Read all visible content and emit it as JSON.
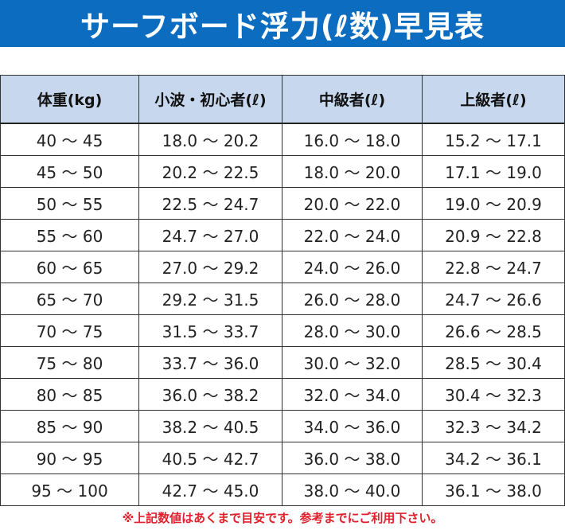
{
  "title": "サーフボード浮力(ℓ数)早見表",
  "colors": {
    "title_bar": "#0b6cc0",
    "header_bg": "#c7d8ee",
    "footnote": "#e0202c"
  },
  "table": {
    "headers": [
      "体重(kg)",
      "小波・初心者(ℓ)",
      "中級者(ℓ)",
      "上級者(ℓ)"
    ],
    "rows": [
      [
        "40 ～ 45",
        "18.0 ～ 20.2",
        "16.0 ～ 18.0",
        "15.2 ～ 17.1"
      ],
      [
        "45 ～ 50",
        "20.2 ～ 22.5",
        "18.0 ～ 20.0",
        "17.1 ～ 19.0"
      ],
      [
        "50 ～ 55",
        "22.5 ～ 24.7",
        "20.0 ～ 22.0",
        "19.0 ～ 20.9"
      ],
      [
        "55 ～ 60",
        "24.7 ～ 27.0",
        "22.0 ～ 24.0",
        "20.9 ～ 22.8"
      ],
      [
        "60 ～ 65",
        "27.0 ～ 29.2",
        "24.0 ～ 26.0",
        "22.8 ～ 24.7"
      ],
      [
        "65 ～ 70",
        "29.2 ～ 31.5",
        "26.0 ～ 28.0",
        "24.7 ～ 26.6"
      ],
      [
        "70 ～ 75",
        "31.5 ～ 33.7",
        "28.0 ～ 30.0",
        "26.6 ～ 28.5"
      ],
      [
        "75 ～ 80",
        "33.7 ～ 36.0",
        "30.0 ～ 32.0",
        "28.5 ～ 30.4"
      ],
      [
        "80 ～ 85",
        "36.0 ～ 38.2",
        "32.0 ～ 34.0",
        "30.4 ～ 32.3"
      ],
      [
        "85 ～ 90",
        "38.2 ～ 40.5",
        "34.0 ～ 36.0",
        "32.3 ～ 34.2"
      ],
      [
        "90 ～ 95",
        "40.5 ～ 42.7",
        "36.0 ～ 38.0",
        "34.2 ～ 36.1"
      ],
      [
        "95 ～ 100",
        "42.7 ～ 45.0",
        "38.0 ～ 40.0",
        "36.1 ～ 38.0"
      ]
    ]
  },
  "footnote": "※上記数値はあくまで目安です。参考までにご利用下さい。"
}
